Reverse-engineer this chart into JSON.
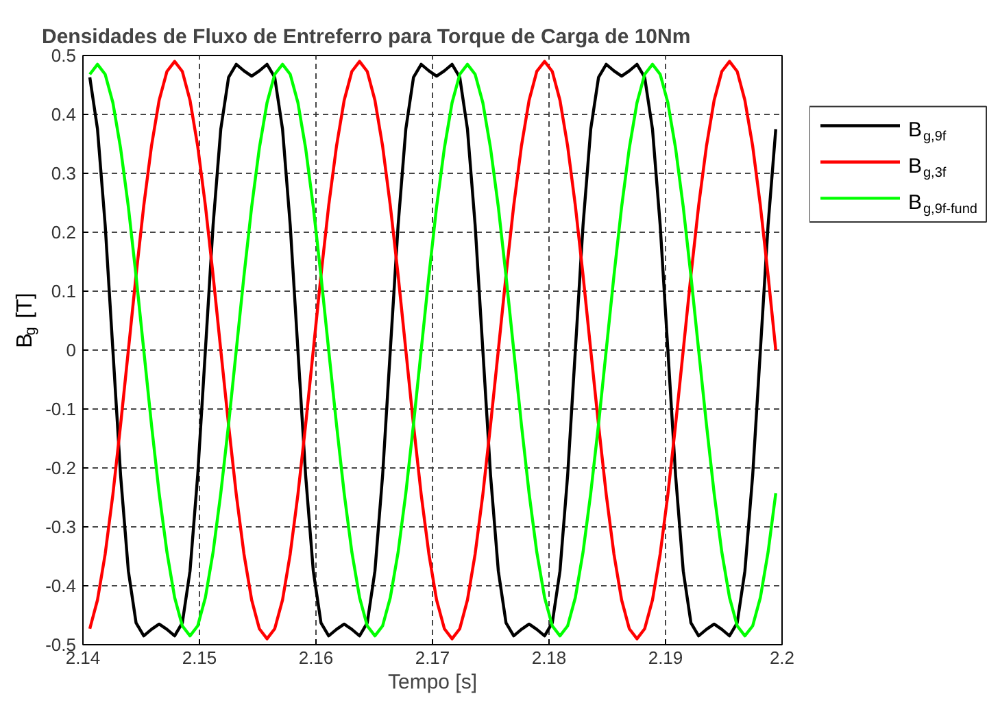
{
  "chart_data": {
    "type": "line",
    "title": "Densidades de Fluxo de Entreferro para Torque de Carga de 10Nm",
    "xlabel": "Tempo [s]",
    "ylabel": "B$_{g}$ [T]",
    "x": [
      2.14059,
      2.14125,
      2.14191,
      2.14257,
      2.14323,
      2.1439,
      2.14456,
      2.14522,
      2.14588,
      2.14654,
      2.14721,
      2.14787,
      2.14853,
      2.14919,
      2.14985,
      2.15051,
      2.15117,
      2.15183,
      2.1525,
      2.15316,
      2.15382,
      2.15448,
      2.15514,
      2.1558,
      2.15646,
      2.15713,
      2.15779,
      2.15845,
      2.15911,
      2.15977,
      2.16043,
      2.16109,
      2.16176,
      2.16242,
      2.16308,
      2.16374,
      2.1644,
      2.16506,
      2.16572,
      2.16638,
      2.16705,
      2.16771,
      2.16837,
      2.16903,
      2.16969,
      2.17035,
      2.17102,
      2.17168,
      2.17234,
      2.173,
      2.17366,
      2.17432,
      2.17498,
      2.17565,
      2.17631,
      2.17697,
      2.17763,
      2.17829,
      2.17895,
      2.17962,
      2.18028,
      2.18094,
      2.1816,
      2.18226,
      2.18292,
      2.18358,
      2.18425,
      2.18491,
      2.18557,
      2.18623,
      2.18689,
      2.18755,
      2.18821,
      2.18888,
      2.18954,
      2.1902,
      2.19086,
      2.19152,
      2.19218,
      2.19284,
      2.19351,
      2.19417,
      2.19483,
      2.19549,
      2.19615,
      2.19681,
      2.19748,
      2.19814,
      2.1988,
      2.19946
    ],
    "series": [
      {
        "name": "B$_{g,9f}$",
        "color": "#000000",
        "values": [
          0.463,
          0.375,
          0.212,
          0,
          -0.212,
          -0.375,
          -0.463,
          -0.485,
          -0.474,
          -0.465,
          -0.474,
          -0.485,
          -0.463,
          -0.375,
          -0.212,
          0,
          0.212,
          0.375,
          0.463,
          0.485,
          0.474,
          0.465,
          0.474,
          0.485,
          0.463,
          0.375,
          0.212,
          0,
          -0.212,
          -0.375,
          -0.463,
          -0.485,
          -0.474,
          -0.465,
          -0.474,
          -0.485,
          -0.463,
          -0.375,
          -0.212,
          0,
          0.212,
          0.375,
          0.463,
          0.485,
          0.474,
          0.465,
          0.474,
          0.485,
          0.463,
          0.375,
          0.212,
          0,
          -0.212,
          -0.375,
          -0.463,
          -0.485,
          -0.474,
          -0.465,
          -0.474,
          -0.485,
          -0.463,
          -0.375,
          -0.212,
          0,
          0.212,
          0.375,
          0.463,
          0.485,
          0.474,
          0.465,
          0.474,
          0.485,
          0.463,
          0.375,
          0.212,
          0,
          -0.212,
          -0.375,
          -0.463,
          -0.485,
          -0.474,
          -0.465,
          -0.474,
          -0.485,
          -0.463,
          -0.375,
          -0.212,
          0,
          0.212,
          0.375
        ]
      },
      {
        "name": "B$_{g,3f}$",
        "color": "#ff0000",
        "values": [
          -0.473,
          -0.424,
          -0.346,
          -0.245,
          -0.127,
          0,
          0.127,
          0.245,
          0.346,
          0.424,
          0.473,
          0.49,
          0.473,
          0.424,
          0.346,
          0.245,
          0.127,
          0,
          -0.127,
          -0.245,
          -0.346,
          -0.424,
          -0.473,
          -0.49,
          -0.473,
          -0.424,
          -0.346,
          -0.245,
          -0.127,
          0,
          0.127,
          0.245,
          0.346,
          0.424,
          0.473,
          0.49,
          0.473,
          0.424,
          0.346,
          0.245,
          0.127,
          0,
          -0.127,
          -0.245,
          -0.346,
          -0.424,
          -0.473,
          -0.49,
          -0.473,
          -0.424,
          -0.346,
          -0.245,
          -0.127,
          0,
          0.127,
          0.245,
          0.346,
          0.424,
          0.473,
          0.49,
          0.473,
          0.424,
          0.346,
          0.245,
          0.127,
          0,
          -0.127,
          -0.245,
          -0.346,
          -0.424,
          -0.473,
          -0.49,
          -0.473,
          -0.424,
          -0.346,
          -0.245,
          -0.127,
          0,
          0.127,
          0.245,
          0.346,
          0.424,
          0.473,
          0.49,
          0.473,
          0.424,
          0.346,
          0.245,
          0.127,
          0
        ]
      },
      {
        "name": "B$_{g,9f-fund}$",
        "color": "#00ff00",
        "values": [
          0.468,
          0.485,
          0.468,
          0.42,
          0.343,
          0.243,
          0.126,
          0,
          -0.126,
          -0.243,
          -0.343,
          -0.42,
          -0.468,
          -0.485,
          -0.468,
          -0.42,
          -0.343,
          -0.243,
          -0.126,
          0,
          0.126,
          0.243,
          0.343,
          0.42,
          0.468,
          0.485,
          0.468,
          0.42,
          0.343,
          0.243,
          0.126,
          0,
          -0.126,
          -0.243,
          -0.343,
          -0.42,
          -0.468,
          -0.485,
          -0.468,
          -0.42,
          -0.343,
          -0.243,
          -0.126,
          0,
          0.126,
          0.243,
          0.343,
          0.42,
          0.468,
          0.485,
          0.468,
          0.42,
          0.343,
          0.243,
          0.126,
          0,
          -0.126,
          -0.243,
          -0.343,
          -0.42,
          -0.468,
          -0.485,
          -0.468,
          -0.42,
          -0.343,
          -0.243,
          -0.126,
          0,
          0.126,
          0.243,
          0.343,
          0.42,
          0.468,
          0.485,
          0.468,
          0.42,
          0.343,
          0.243,
          0.126,
          0,
          -0.126,
          -0.243,
          -0.343,
          -0.42,
          -0.468,
          -0.485,
          -0.468,
          -0.42,
          -0.343,
          -0.243
        ]
      }
    ],
    "xlim": [
      2.14,
      2.2
    ],
    "ylim": [
      -0.5,
      0.5
    ],
    "xticks": [
      2.14,
      2.15,
      2.16,
      2.17,
      2.18,
      2.19,
      2.2
    ],
    "yticks": [
      -0.5,
      -0.4,
      -0.3,
      -0.2,
      -0.1,
      0,
      0.1,
      0.2,
      0.3,
      0.4,
      0.5
    ],
    "grid": true,
    "legend": "right"
  }
}
